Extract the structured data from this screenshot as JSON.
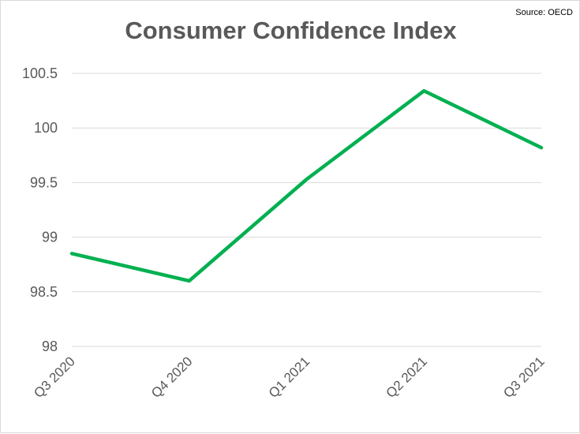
{
  "source": "Source: OECD",
  "colors": {
    "line": "#00b050",
    "grid": "#d9d9d9",
    "text": "#595959"
  },
  "chart_data": {
    "type": "line",
    "title": "Consumer Confidence Index",
    "xlabel": "",
    "ylabel": "",
    "categories": [
      "Q3 2020",
      "Q4 2020",
      "Q1 2021",
      "Q2 2021",
      "Q3 2021"
    ],
    "series": [
      {
        "values": [
          98.85,
          98.6,
          99.53,
          100.34,
          99.82
        ]
      }
    ],
    "ylim": [
      98,
      100.5
    ],
    "yticks": [
      98,
      98.5,
      99,
      99.5,
      100,
      100.5
    ],
    "ytick_labels": [
      "98",
      "98.5",
      "99",
      "99.5",
      "100",
      "100.5"
    ],
    "grid": true,
    "legend": "none"
  }
}
